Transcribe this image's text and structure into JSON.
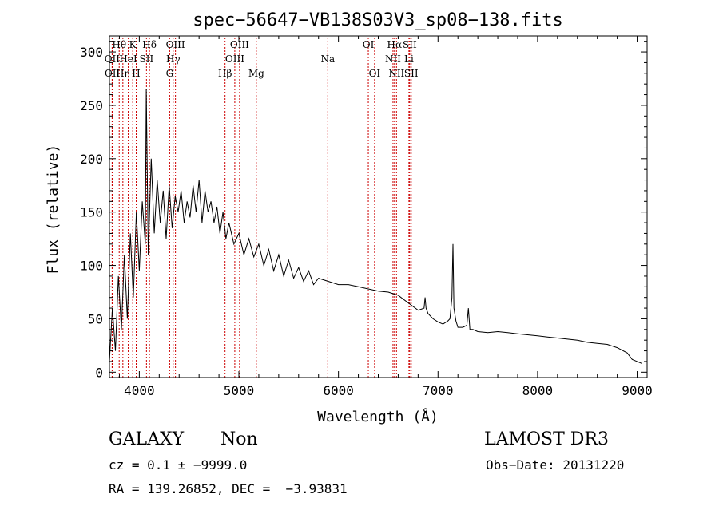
{
  "chart_data": {
    "type": "line",
    "title": "spec−56647−VB138S03V3_sp08−138.fits",
    "xlabel": "Wavelength (Å)",
    "ylabel": "Flux (relative)",
    "xlim": [
      3700,
      9100
    ],
    "ylim": [
      -5,
      315
    ],
    "x_ticks": [
      4000,
      5000,
      6000,
      7000,
      8000,
      9000
    ],
    "x_tick_labels": [
      "4000",
      "5000",
      "6000",
      "7000",
      "8000",
      "9000"
    ],
    "y_ticks": [
      0,
      50,
      100,
      150,
      200,
      250,
      300
    ],
    "y_tick_labels": [
      "0",
      "50",
      "100",
      "150",
      "200",
      "250",
      "300"
    ],
    "series": [
      {
        "name": "flux",
        "x": [
          3700,
          3730,
          3760,
          3790,
          3820,
          3850,
          3880,
          3910,
          3940,
          3970,
          4000,
          4030,
          4060,
          4070,
          4090,
          4120,
          4150,
          4180,
          4210,
          4240,
          4270,
          4300,
          4330,
          4360,
          4390,
          4420,
          4450,
          4480,
          4510,
          4540,
          4570,
          4600,
          4630,
          4660,
          4690,
          4720,
          4750,
          4780,
          4810,
          4840,
          4870,
          4900,
          4950,
          5000,
          5050,
          5100,
          5150,
          5200,
          5250,
          5300,
          5350,
          5400,
          5450,
          5500,
          5550,
          5600,
          5650,
          5700,
          5750,
          5800,
          5900,
          6000,
          6100,
          6200,
          6300,
          6400,
          6500,
          6600,
          6700,
          6800,
          6860,
          6870,
          6880,
          6900,
          6950,
          7000,
          7050,
          7100,
          7120,
          7140,
          7150,
          7160,
          7180,
          7200,
          7250,
          7290,
          7305,
          7320,
          7350,
          7400,
          7500,
          7600,
          7700,
          7800,
          7900,
          8000,
          8100,
          8200,
          8300,
          8400,
          8500,
          8600,
          8700,
          8800,
          8900,
          8950,
          9000,
          9050
        ],
        "y": [
          10,
          60,
          20,
          90,
          40,
          110,
          50,
          130,
          70,
          150,
          95,
          160,
          120,
          265,
          110,
          200,
          130,
          180,
          140,
          170,
          125,
          175,
          135,
          165,
          150,
          170,
          140,
          160,
          145,
          175,
          150,
          180,
          140,
          170,
          150,
          160,
          140,
          155,
          130,
          150,
          125,
          140,
          120,
          130,
          110,
          125,
          108,
          120,
          100,
          115,
          95,
          110,
          90,
          105,
          88,
          98,
          85,
          95,
          82,
          88,
          85,
          82,
          82,
          80,
          78,
          76,
          75,
          72,
          65,
          58,
          60,
          70,
          60,
          55,
          50,
          47,
          45,
          48,
          50,
          70,
          120,
          60,
          48,
          42,
          42,
          44,
          60,
          40,
          40,
          38,
          37,
          38,
          37,
          36,
          35,
          34,
          33,
          32,
          31,
          30,
          28,
          27,
          26,
          23,
          18,
          12,
          10,
          8
        ]
      }
    ],
    "line_labels": [
      {
        "name": "OII",
        "x": 3727,
        "row": 2
      },
      {
        "name": "OII",
        "x": 3729,
        "row": 3
      },
      {
        "name": "Hθ",
        "x": 3798,
        "row": 1
      },
      {
        "name": "Hη",
        "x": 3835,
        "row": 3
      },
      {
        "name": "HeI",
        "x": 3889,
        "row": 2
      },
      {
        "name": "K",
        "x": 3934,
        "row": 1
      },
      {
        "name": "H",
        "x": 3969,
        "row": 3
      },
      {
        "name": "Hδ",
        "x": 4102,
        "row": 1
      },
      {
        "name": "SII",
        "x": 4072,
        "row": 2
      },
      {
        "name": "G",
        "x": 4305,
        "row": 3
      },
      {
        "name": "Hγ",
        "x": 4340,
        "row": 2
      },
      {
        "name": "OIII",
        "x": 4363,
        "row": 1
      },
      {
        "name": "Hβ",
        "x": 4861,
        "row": 3
      },
      {
        "name": "OIII",
        "x": 4959,
        "row": 2
      },
      {
        "name": "OIII",
        "x": 5007,
        "row": 1
      },
      {
        "name": "Mg",
        "x": 5175,
        "row": 3
      },
      {
        "name": "Na",
        "x": 5893,
        "row": 2
      },
      {
        "name": "OI",
        "x": 6300,
        "row": 1
      },
      {
        "name": "OI",
        "x": 6363,
        "row": 3
      },
      {
        "name": "NII",
        "x": 6548,
        "row": 2
      },
      {
        "name": "Hα",
        "x": 6563,
        "row": 1
      },
      {
        "name": "NII",
        "x": 6583,
        "row": 3
      },
      {
        "name": "SII",
        "x": 6716,
        "row": 1
      },
      {
        "name": "Li",
        "x": 6708,
        "row": 2
      },
      {
        "name": "SII",
        "x": 6731,
        "row": 3
      }
    ]
  },
  "info": {
    "class": "GALAXY",
    "subclass": "Non",
    "survey": "LAMOST DR3",
    "cz_line": "cz = 0.1 ± −9999.0",
    "obs_date": "Obs−Date: 20131220",
    "radec": "RA = 139.26852, DEC =  −3.93831"
  },
  "colors": {
    "axes": "#000000",
    "spectrum": "#000000",
    "line_markers": "#cc0000"
  }
}
